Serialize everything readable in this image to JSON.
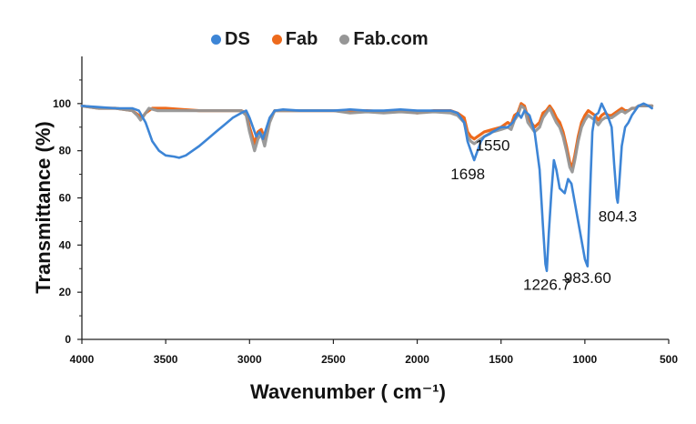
{
  "chart_data": {
    "type": "line",
    "xlabel": "Wavenumber ( cm⁻¹)",
    "ylabel": "Transmittance (%)",
    "xlim": [
      4000,
      500
    ],
    "ylim": [
      0,
      120
    ],
    "xticks": [
      4000,
      3500,
      3000,
      2500,
      2000,
      1500,
      1000,
      500
    ],
    "yticks": [
      0,
      20,
      40,
      60,
      80,
      100
    ],
    "grid": false,
    "legend": "top",
    "series": [
      {
        "name": "DS",
        "color": "#3d85d6",
        "points": [
          [
            4000,
            99
          ],
          [
            3900,
            98.5
          ],
          [
            3800,
            98
          ],
          [
            3700,
            98
          ],
          [
            3660,
            97
          ],
          [
            3620,
            92
          ],
          [
            3580,
            84
          ],
          [
            3540,
            80
          ],
          [
            3500,
            78
          ],
          [
            3450,
            77.5
          ],
          [
            3420,
            77
          ],
          [
            3380,
            78
          ],
          [
            3340,
            80
          ],
          [
            3300,
            82
          ],
          [
            3250,
            85
          ],
          [
            3200,
            88
          ],
          [
            3150,
            91
          ],
          [
            3100,
            94
          ],
          [
            3050,
            96
          ],
          [
            3020,
            97
          ],
          [
            3000,
            94
          ],
          [
            2960,
            86
          ],
          [
            2940,
            88
          ],
          [
            2920,
            85
          ],
          [
            2880,
            94
          ],
          [
            2850,
            97
          ],
          [
            2800,
            97.5
          ],
          [
            2700,
            97
          ],
          [
            2600,
            97
          ],
          [
            2500,
            97
          ],
          [
            2400,
            97.5
          ],
          [
            2300,
            97
          ],
          [
            2200,
            97
          ],
          [
            2100,
            97.5
          ],
          [
            2000,
            97
          ],
          [
            1900,
            97
          ],
          [
            1800,
            97
          ],
          [
            1760,
            96
          ],
          [
            1720,
            92
          ],
          [
            1700,
            84
          ],
          [
            1680,
            80
          ],
          [
            1660,
            76
          ],
          [
            1640,
            80
          ],
          [
            1620,
            84
          ],
          [
            1600,
            86
          ],
          [
            1570,
            87
          ],
          [
            1550,
            88
          ],
          [
            1500,
            90
          ],
          [
            1460,
            90
          ],
          [
            1430,
            92
          ],
          [
            1400,
            96
          ],
          [
            1380,
            94
          ],
          [
            1360,
            97
          ],
          [
            1330,
            95
          ],
          [
            1300,
            88
          ],
          [
            1270,
            72
          ],
          [
            1250,
            48
          ],
          [
            1235,
            32
          ],
          [
            1227,
            29
          ],
          [
            1215,
            45
          ],
          [
            1200,
            62
          ],
          [
            1185,
            76
          ],
          [
            1170,
            72
          ],
          [
            1150,
            64
          ],
          [
            1120,
            62
          ],
          [
            1100,
            68
          ],
          [
            1080,
            66
          ],
          [
            1060,
            58
          ],
          [
            1040,
            50
          ],
          [
            1020,
            42
          ],
          [
            1000,
            34
          ],
          [
            984,
            31
          ],
          [
            975,
            50
          ],
          [
            965,
            70
          ],
          [
            955,
            88
          ],
          [
            940,
            95
          ],
          [
            920,
            96
          ],
          [
            900,
            100
          ],
          [
            880,
            97
          ],
          [
            860,
            94
          ],
          [
            840,
            90
          ],
          [
            825,
            74
          ],
          [
            810,
            60
          ],
          [
            804,
            58
          ],
          [
            795,
            66
          ],
          [
            780,
            82
          ],
          [
            760,
            90
          ],
          [
            740,
            92
          ],
          [
            720,
            95
          ],
          [
            700,
            97
          ],
          [
            680,
            99
          ],
          [
            650,
            100
          ],
          [
            620,
            99
          ],
          [
            600,
            98
          ]
        ]
      },
      {
        "name": "Fab",
        "color": "#ed6a1c",
        "points": [
          [
            4000,
            99
          ],
          [
            3900,
            98
          ],
          [
            3800,
            98
          ],
          [
            3700,
            97
          ],
          [
            3660,
            95
          ],
          [
            3640,
            94
          ],
          [
            3620,
            96
          ],
          [
            3580,
            98
          ],
          [
            3500,
            98
          ],
          [
            3400,
            97.5
          ],
          [
            3300,
            97
          ],
          [
            3200,
            97
          ],
          [
            3100,
            97
          ],
          [
            3050,
            97
          ],
          [
            3020,
            96
          ],
          [
            3000,
            90
          ],
          [
            2970,
            83
          ],
          [
            2950,
            88
          ],
          [
            2930,
            89
          ],
          [
            2910,
            85
          ],
          [
            2880,
            93
          ],
          [
            2850,
            97
          ],
          [
            2800,
            97
          ],
          [
            2700,
            97
          ],
          [
            2600,
            97
          ],
          [
            2500,
            97
          ],
          [
            2400,
            96.5
          ],
          [
            2300,
            97
          ],
          [
            2200,
            96.5
          ],
          [
            2100,
            97
          ],
          [
            2000,
            96
          ],
          [
            1900,
            97
          ],
          [
            1800,
            97
          ],
          [
            1760,
            96
          ],
          [
            1720,
            94
          ],
          [
            1700,
            88
          ],
          [
            1680,
            86
          ],
          [
            1660,
            85
          ],
          [
            1640,
            86
          ],
          [
            1600,
            88
          ],
          [
            1550,
            89
          ],
          [
            1500,
            90
          ],
          [
            1460,
            92
          ],
          [
            1440,
            91
          ],
          [
            1420,
            95
          ],
          [
            1400,
            96
          ],
          [
            1380,
            100
          ],
          [
            1360,
            99
          ],
          [
            1340,
            94
          ],
          [
            1300,
            90
          ],
          [
            1270,
            92
          ],
          [
            1250,
            96
          ],
          [
            1230,
            97
          ],
          [
            1210,
            99
          ],
          [
            1190,
            97
          ],
          [
            1170,
            94
          ],
          [
            1150,
            92
          ],
          [
            1130,
            88
          ],
          [
            1110,
            82
          ],
          [
            1090,
            75
          ],
          [
            1075,
            73
          ],
          [
            1060,
            78
          ],
          [
            1040,
            86
          ],
          [
            1020,
            92
          ],
          [
            1000,
            95
          ],
          [
            980,
            97
          ],
          [
            960,
            96
          ],
          [
            940,
            95
          ],
          [
            920,
            93
          ],
          [
            900,
            95
          ],
          [
            880,
            96
          ],
          [
            860,
            95
          ],
          [
            840,
            95
          ],
          [
            820,
            96
          ],
          [
            800,
            97
          ],
          [
            780,
            98
          ],
          [
            760,
            97
          ],
          [
            740,
            97
          ],
          [
            720,
            98
          ],
          [
            700,
            98
          ],
          [
            680,
            99
          ],
          [
            650,
            99
          ],
          [
            620,
            99
          ],
          [
            600,
            99
          ]
        ]
      },
      {
        "name": "Fab.com",
        "color": "#969696",
        "points": [
          [
            4000,
            99
          ],
          [
            3900,
            98
          ],
          [
            3800,
            98
          ],
          [
            3700,
            97
          ],
          [
            3670,
            95
          ],
          [
            3650,
            93
          ],
          [
            3630,
            95
          ],
          [
            3600,
            98
          ],
          [
            3550,
            97
          ],
          [
            3500,
            97
          ],
          [
            3400,
            97
          ],
          [
            3300,
            97
          ],
          [
            3200,
            97
          ],
          [
            3100,
            97
          ],
          [
            3050,
            97
          ],
          [
            3020,
            95
          ],
          [
            3000,
            88
          ],
          [
            2970,
            80
          ],
          [
            2950,
            85
          ],
          [
            2930,
            87
          ],
          [
            2910,
            82
          ],
          [
            2880,
            92
          ],
          [
            2850,
            97
          ],
          [
            2800,
            97
          ],
          [
            2700,
            97
          ],
          [
            2600,
            97
          ],
          [
            2500,
            97
          ],
          [
            2400,
            96
          ],
          [
            2300,
            96.5
          ],
          [
            2200,
            96
          ],
          [
            2100,
            96.5
          ],
          [
            2000,
            96
          ],
          [
            1900,
            96.5
          ],
          [
            1800,
            96
          ],
          [
            1760,
            95
          ],
          [
            1720,
            92
          ],
          [
            1700,
            86
          ],
          [
            1680,
            84
          ],
          [
            1660,
            83
          ],
          [
            1640,
            84
          ],
          [
            1600,
            86
          ],
          [
            1550,
            88
          ],
          [
            1500,
            89
          ],
          [
            1460,
            90
          ],
          [
            1440,
            89
          ],
          [
            1420,
            93
          ],
          [
            1400,
            95
          ],
          [
            1380,
            99
          ],
          [
            1360,
            98
          ],
          [
            1340,
            92
          ],
          [
            1300,
            88
          ],
          [
            1270,
            90
          ],
          [
            1250,
            94
          ],
          [
            1230,
            96
          ],
          [
            1210,
            98
          ],
          [
            1190,
            95
          ],
          [
            1170,
            92
          ],
          [
            1150,
            90
          ],
          [
            1130,
            86
          ],
          [
            1110,
            80
          ],
          [
            1090,
            73
          ],
          [
            1075,
            71
          ],
          [
            1060,
            76
          ],
          [
            1040,
            84
          ],
          [
            1020,
            90
          ],
          [
            1000,
            93
          ],
          [
            980,
            95
          ],
          [
            960,
            94
          ],
          [
            940,
            93
          ],
          [
            920,
            91
          ],
          [
            900,
            93
          ],
          [
            880,
            94
          ],
          [
            860,
            94
          ],
          [
            840,
            94
          ],
          [
            820,
            95
          ],
          [
            800,
            96
          ],
          [
            780,
            97
          ],
          [
            760,
            96
          ],
          [
            740,
            97
          ],
          [
            720,
            98
          ],
          [
            700,
            98
          ],
          [
            680,
            99
          ],
          [
            650,
            99
          ],
          [
            620,
            99
          ],
          [
            600,
            99
          ]
        ]
      }
    ],
    "annotations": [
      {
        "text": "1550",
        "x": 1550,
        "y": 80
      },
      {
        "text": "1698",
        "x": 1698,
        "y": 68
      },
      {
        "text": "804.3",
        "x": 804,
        "y": 50
      },
      {
        "text": "1226.7",
        "x": 1227,
        "y": 21
      },
      {
        "text": "983.60",
        "x": 984,
        "y": 24
      }
    ]
  }
}
